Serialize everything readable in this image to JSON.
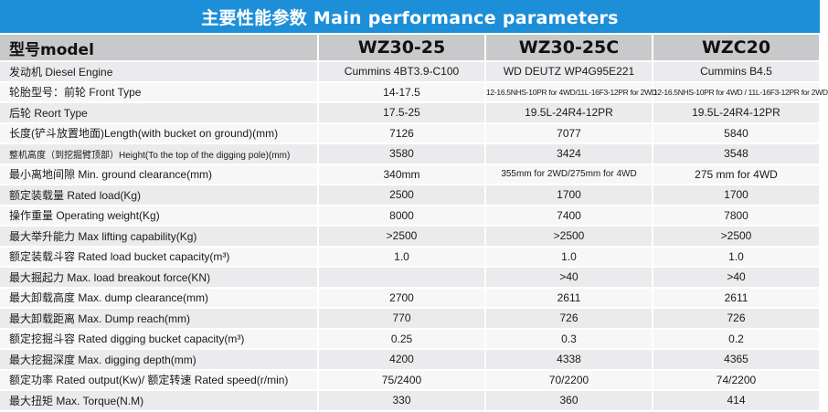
{
  "title": "主要性能参数  Main performance parameters",
  "header": {
    "label": "型号model",
    "models": [
      "WZ30-25",
      "WZ30-25C",
      "WZC20"
    ]
  },
  "rows": [
    {
      "label": "发动机  Diesel Engine",
      "values": [
        "Cummins  4BT3.9-C100",
        "WD DEUTZ WP4G95E221",
        "Cummins  B4.5"
      ]
    },
    {
      "label": "轮胎型号：前轮  Front Type",
      "values": [
        "14-17.5",
        "12-16.5NHS-10PR for 4WD/11L-16F3-12PR for 2WD",
        "12-16.5NHS-10PR for 4WD / 11L-16F3-12PR for 2WD"
      ]
    },
    {
      "label": "后轮  Reort Type",
      "values": [
        "17.5-25",
        "19.5L-24R4-12PR",
        "19.5L-24R4-12PR"
      ]
    },
    {
      "label": "长度(铲斗放置地面)Length(with bucket on ground)(mm)",
      "values": [
        "7126",
        "7077",
        "5840"
      ]
    },
    {
      "label": "整机高度（到挖掘臂顶部）Height(To the top of the digging pole)(mm)",
      "values": [
        "3580",
        "3424",
        "3548"
      ]
    },
    {
      "label": "最小离地间隙 Min. ground clearance(mm)",
      "values": [
        "340mm",
        "355mm for 2WD/275mm for 4WD",
        "275 mm for 4WD"
      ]
    },
    {
      "label": "额定装载量 Rated load(Kg)",
      "values": [
        "2500",
        "1700",
        "1700"
      ]
    },
    {
      "label": "操作重量 Operating weight(Kg)",
      "values": [
        "8000",
        "7400",
        "7800"
      ]
    },
    {
      "label": "最大举升能力 Max lifting capability(Kg)",
      "values": [
        ">2500",
        ">2500",
        ">2500"
      ]
    },
    {
      "label": "额定装载斗容 Rated load bucket capacity(m³)",
      "values": [
        "1.0",
        "1.0",
        "1.0"
      ]
    },
    {
      "label": "最大掘起力 Max. load breakout force(KN)",
      "values": [
        "",
        ">40",
        ">40"
      ]
    },
    {
      "label": "最大卸载高度 Max. dump clearance(mm)",
      "values": [
        "2700",
        "2611",
        "2611"
      ]
    },
    {
      "label": "最大卸载距离 Max. Dump reach(mm)",
      "values": [
        "770",
        "726",
        "726"
      ]
    },
    {
      "label": "额定挖掘斗容 Rated digging bucket capacity(m³)",
      "values": [
        "0.25",
        "0.3",
        "0.2"
      ]
    },
    {
      "label": "最大挖掘深度 Max. digging depth(mm)",
      "values": [
        "4200",
        "4338",
        "4365"
      ]
    },
    {
      "label": "额定功率 Rated output(Kw)/ 额定转速 Rated speed(r/min)",
      "values": [
        "75/2400",
        "70/2200",
        "74/2200"
      ]
    },
    {
      "label": "最大扭矩 Max. Torque(N.M)",
      "values": [
        "330",
        "360",
        "414"
      ]
    }
  ]
}
